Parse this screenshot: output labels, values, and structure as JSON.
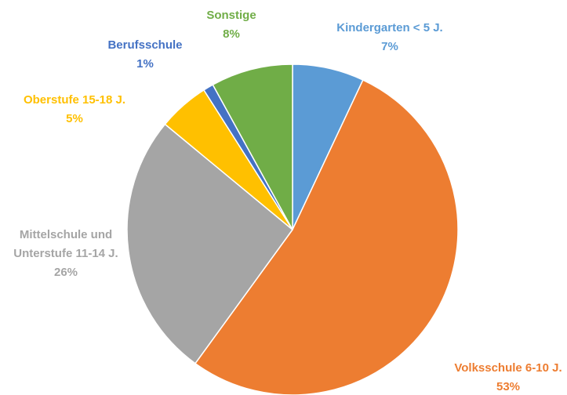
{
  "chart_data": {
    "type": "pie",
    "categories": [
      "Kindergarten < 5 J.",
      "Volksschule 6-10 J.",
      "Mittelschule und Unterstufe 11-14 J.",
      "Oberstufe 15-18 J.",
      "Berufsschule",
      "Sonstige"
    ],
    "values": [
      7,
      53,
      26,
      5,
      1,
      8
    ],
    "value_labels": [
      "7%",
      "53%",
      "26%",
      "5%",
      "1%",
      "8%"
    ],
    "colors": [
      "#5b9bd5",
      "#ed7d31",
      "#a5a5a5",
      "#ffc000",
      "#4472c4",
      "#70ad47"
    ]
  }
}
